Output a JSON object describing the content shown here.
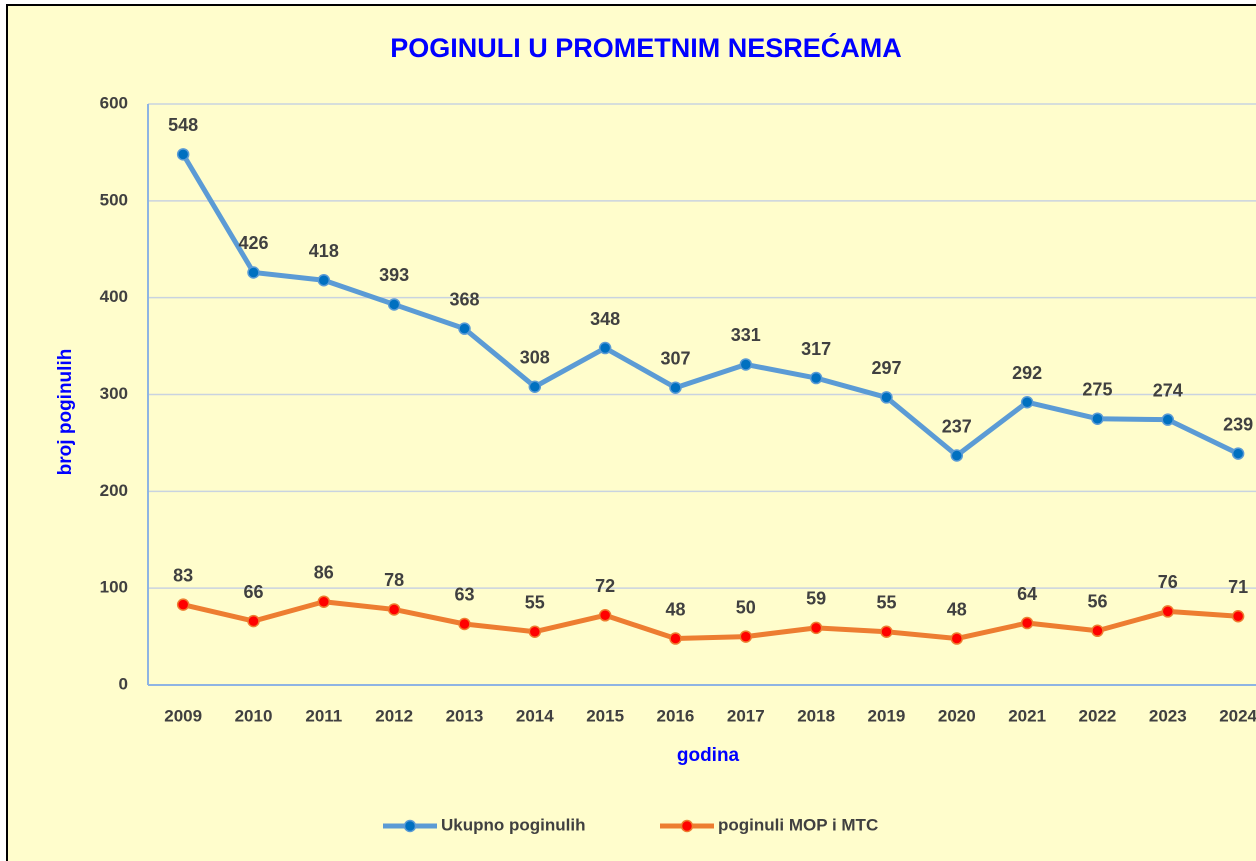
{
  "chart_data": {
    "type": "line",
    "title": "POGINULI U PROMETNIM NESREĆAMA",
    "x_label": "godina",
    "y_label": "broj poginulih",
    "categories": [
      "2009",
      "2010",
      "2011",
      "2012",
      "2013",
      "2014",
      "2015",
      "2016",
      "2017",
      "2018",
      "2019",
      "2020",
      "2021",
      "2022",
      "2023",
      "2024"
    ],
    "series": [
      {
        "name": "Ukupno poginulih",
        "color": "#5b9bd5",
        "marker_color": "#0070c0",
        "values": [
          548,
          426,
          418,
          393,
          368,
          308,
          348,
          307,
          331,
          317,
          297,
          237,
          292,
          275,
          274,
          239
        ]
      },
      {
        "name": "poginuli MOP i MTC",
        "color": "#ed7d31",
        "marker_color": "#ff0000",
        "values": [
          83,
          66,
          86,
          78,
          63,
          55,
          72,
          48,
          50,
          59,
          55,
          48,
          64,
          56,
          76,
          71
        ]
      }
    ],
    "ylim": [
      0,
      600
    ],
    "yticks": [
      0,
      100,
      200,
      300,
      400,
      500,
      600
    ],
    "grid": true,
    "legend": "bottom"
  }
}
